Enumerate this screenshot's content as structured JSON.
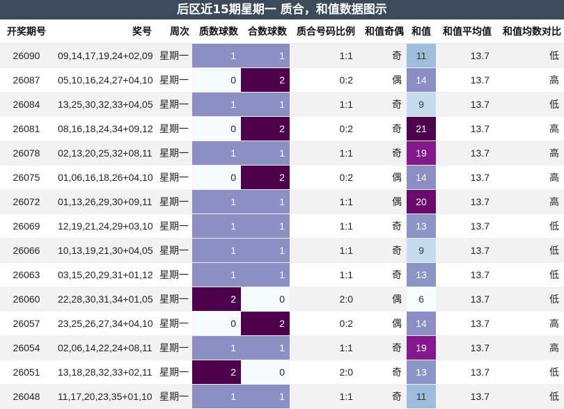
{
  "title": "后区近15期星期一 质合，和值数据图示",
  "headers": [
    "开奖期号",
    "奖号",
    "周次",
    "质数球数",
    "合数球数",
    "质合号码比例",
    "和值奇偶",
    "和值",
    "和值平均值",
    "和值均数对比"
  ],
  "rows": [
    {
      "period": "26090",
      "numbers": "09,14,17,19,24+02,09",
      "weekday": "星期一",
      "prime": "1",
      "composite": "1",
      "ratio": "1:1",
      "parity": "奇",
      "sum": "11",
      "avg": "13.7",
      "compare": "低"
    },
    {
      "period": "26087",
      "numbers": "05,10,16,24,27+04,10",
      "weekday": "星期一",
      "prime": "0",
      "composite": "2",
      "ratio": "0:2",
      "parity": "偶",
      "sum": "14",
      "avg": "13.7",
      "compare": "高"
    },
    {
      "period": "26084",
      "numbers": "13,25,30,32,33+04,05",
      "weekday": "星期一",
      "prime": "1",
      "composite": "1",
      "ratio": "1:1",
      "parity": "奇",
      "sum": "9",
      "avg": "13.7",
      "compare": "低"
    },
    {
      "period": "26081",
      "numbers": "08,16,18,24,34+09,12",
      "weekday": "星期一",
      "prime": "0",
      "composite": "2",
      "ratio": "0:2",
      "parity": "奇",
      "sum": "21",
      "avg": "13.7",
      "compare": "高"
    },
    {
      "period": "26078",
      "numbers": "02,13,20,25,32+08,11",
      "weekday": "星期一",
      "prime": "1",
      "composite": "1",
      "ratio": "1:1",
      "parity": "奇",
      "sum": "19",
      "avg": "13.7",
      "compare": "高"
    },
    {
      "period": "26075",
      "numbers": "01,06,16,18,26+04,10",
      "weekday": "星期一",
      "prime": "0",
      "composite": "2",
      "ratio": "0:2",
      "parity": "偶",
      "sum": "14",
      "avg": "13.7",
      "compare": "高"
    },
    {
      "period": "26072",
      "numbers": "01,13,26,29,30+09,11",
      "weekday": "星期一",
      "prime": "1",
      "composite": "1",
      "ratio": "1:1",
      "parity": "偶",
      "sum": "20",
      "avg": "13.7",
      "compare": "高"
    },
    {
      "period": "26069",
      "numbers": "12,19,21,24,29+03,10",
      "weekday": "星期一",
      "prime": "1",
      "composite": "1",
      "ratio": "1:1",
      "parity": "奇",
      "sum": "13",
      "avg": "13.7",
      "compare": "低"
    },
    {
      "period": "26066",
      "numbers": "10,13,19,21,30+04,05",
      "weekday": "星期一",
      "prime": "1",
      "composite": "1",
      "ratio": "1:1",
      "parity": "奇",
      "sum": "9",
      "avg": "13.7",
      "compare": "低"
    },
    {
      "period": "26063",
      "numbers": "03,15,20,29,31+01,12",
      "weekday": "星期一",
      "prime": "1",
      "composite": "1",
      "ratio": "1:1",
      "parity": "奇",
      "sum": "13",
      "avg": "13.7",
      "compare": "低"
    },
    {
      "period": "26060",
      "numbers": "22,28,30,31,34+01,05",
      "weekday": "星期一",
      "prime": "2",
      "composite": "0",
      "ratio": "2:0",
      "parity": "偶",
      "sum": "6",
      "avg": "13.7",
      "compare": "低"
    },
    {
      "period": "26057",
      "numbers": "23,25,26,27,34+04,10",
      "weekday": "星期一",
      "prime": "0",
      "composite": "2",
      "ratio": "0:2",
      "parity": "偶",
      "sum": "14",
      "avg": "13.7",
      "compare": "高"
    },
    {
      "period": "26054",
      "numbers": "02,06,14,22,24+08,11",
      "weekday": "星期一",
      "prime": "1",
      "composite": "1",
      "ratio": "1:1",
      "parity": "奇",
      "sum": "19",
      "avg": "13.7",
      "compare": "高"
    },
    {
      "period": "26051",
      "numbers": "13,18,28,32,33+02,11",
      "weekday": "星期一",
      "prime": "2",
      "composite": "0",
      "ratio": "2:0",
      "parity": "奇",
      "sum": "13",
      "avg": "13.7",
      "compare": "低"
    },
    {
      "period": "26048",
      "numbers": "11,17,20,23,35+01,10",
      "weekday": "星期一",
      "prime": "1",
      "composite": "1",
      "ratio": "1:1",
      "parity": "奇",
      "sum": "11",
      "avg": "13.7",
      "compare": "低"
    }
  ],
  "colors": {
    "count_0": "#f5fbfc",
    "count_1": "#8c8fc4",
    "count_2": "#4d004b",
    "sum_6": "#f7fcfd",
    "sum_9": "#c6dbed",
    "sum_11": "#9ebcdb",
    "sum_13": "#8c96c6",
    "sum_14": "#8c8dc4",
    "sum_19": "#84188a",
    "sum_20": "#6a0a6c",
    "sum_21": "#4d004b"
  }
}
